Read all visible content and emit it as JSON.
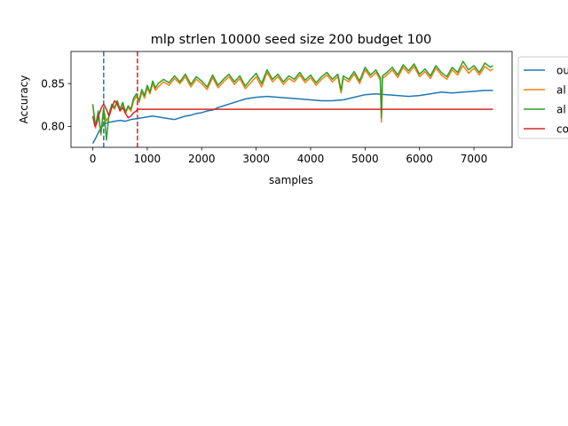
{
  "chart_data": {
    "type": "line",
    "title": "mlp strlen 10000 seed size 200 budget 100",
    "xlabel": "samples",
    "ylabel": "Accuracy",
    "xlim": [
      -400,
      7700
    ],
    "ylim": [
      0.7755,
      0.8875
    ],
    "xticks": [
      0,
      1000,
      2000,
      3000,
      4000,
      5000,
      6000,
      7000
    ],
    "yticks": [
      0.8,
      0.85
    ],
    "ytick_labels": [
      "0.80",
      "0.85"
    ],
    "grid": false,
    "legend_placement": "outside right, clipped",
    "vlines": [
      {
        "x": 200,
        "color": "#1f77b4",
        "style": "dashed"
      },
      {
        "x": 820,
        "color": "#d62728",
        "style": "dashed"
      }
    ],
    "series": [
      {
        "name": "ou",
        "color": "#1f77b4",
        "x": [
          0,
          60,
          120,
          200,
          260,
          320,
          400,
          500,
          600,
          700,
          800,
          900,
          1000,
          1100,
          1200,
          1300,
          1400,
          1500,
          1600,
          1700,
          1800,
          1900,
          2000,
          2100,
          2200,
          2300,
          2400,
          2500,
          2600,
          2700,
          2800,
          2900,
          3000,
          3200,
          3400,
          3600,
          3800,
          4000,
          4200,
          4400,
          4600,
          4800,
          5000,
          5200,
          5400,
          5600,
          5800,
          6000,
          6200,
          6400,
          6600,
          6800,
          7000,
          7200,
          7350
        ],
        "y": [
          0.78,
          0.787,
          0.795,
          0.802,
          0.804,
          0.805,
          0.806,
          0.807,
          0.806,
          0.808,
          0.809,
          0.81,
          0.811,
          0.812,
          0.811,
          0.81,
          0.809,
          0.808,
          0.81,
          0.812,
          0.813,
          0.815,
          0.816,
          0.818,
          0.819,
          0.822,
          0.824,
          0.826,
          0.828,
          0.83,
          0.832,
          0.833,
          0.834,
          0.835,
          0.834,
          0.833,
          0.832,
          0.831,
          0.83,
          0.83,
          0.831,
          0.834,
          0.837,
          0.838,
          0.837,
          0.836,
          0.835,
          0.836,
          0.838,
          0.84,
          0.839,
          0.84,
          0.841,
          0.842,
          0.842
        ]
      },
      {
        "name": "al",
        "color": "#ff7f0e",
        "x": [
          0,
          50,
          100,
          150,
          200,
          250,
          300,
          350,
          400,
          450,
          500,
          550,
          600,
          650,
          700,
          750,
          800,
          850,
          900,
          950,
          1000,
          1050,
          1100,
          1150,
          1200,
          1300,
          1400,
          1500,
          1600,
          1700,
          1800,
          1900,
          2000,
          2100,
          2200,
          2300,
          2400,
          2500,
          2600,
          2700,
          2800,
          2900,
          3000,
          3100,
          3200,
          3300,
          3400,
          3500,
          3600,
          3700,
          3800,
          3900,
          4000,
          4100,
          4200,
          4300,
          4400,
          4500,
          4560,
          4600,
          4700,
          4800,
          4900,
          5000,
          5100,
          5200,
          5280,
          5300,
          5320,
          5400,
          5500,
          5600,
          5700,
          5800,
          5900,
          6000,
          6100,
          6200,
          6300,
          6400,
          6500,
          6600,
          6700,
          6800,
          6900,
          7000,
          7100,
          7200,
          7300,
          7350
        ],
        "y": [
          0.825,
          0.798,
          0.815,
          0.79,
          0.82,
          0.806,
          0.812,
          0.824,
          0.82,
          0.828,
          0.818,
          0.826,
          0.815,
          0.822,
          0.818,
          0.83,
          0.835,
          0.828,
          0.84,
          0.833,
          0.845,
          0.838,
          0.85,
          0.842,
          0.846,
          0.852,
          0.848,
          0.856,
          0.85,
          0.858,
          0.846,
          0.855,
          0.85,
          0.843,
          0.857,
          0.845,
          0.852,
          0.858,
          0.849,
          0.856,
          0.844,
          0.851,
          0.858,
          0.846,
          0.863,
          0.852,
          0.858,
          0.849,
          0.856,
          0.852,
          0.86,
          0.851,
          0.857,
          0.848,
          0.855,
          0.86,
          0.852,
          0.858,
          0.839,
          0.856,
          0.852,
          0.861,
          0.85,
          0.866,
          0.857,
          0.863,
          0.854,
          0.805,
          0.856,
          0.86,
          0.866,
          0.857,
          0.869,
          0.862,
          0.87,
          0.858,
          0.864,
          0.856,
          0.868,
          0.86,
          0.855,
          0.866,
          0.86,
          0.871,
          0.862,
          0.868,
          0.86,
          0.87,
          0.865,
          0.867
        ]
      },
      {
        "name": "al",
        "color": "#2ca02c",
        "x": [
          0,
          50,
          100,
          150,
          200,
          250,
          300,
          350,
          400,
          450,
          500,
          550,
          600,
          650,
          700,
          750,
          800,
          850,
          900,
          950,
          1000,
          1050,
          1100,
          1150,
          1200,
          1300,
          1400,
          1500,
          1600,
          1700,
          1800,
          1900,
          2000,
          2100,
          2200,
          2300,
          2400,
          2500,
          2600,
          2700,
          2800,
          2900,
          3000,
          3100,
          3200,
          3300,
          3400,
          3500,
          3600,
          3700,
          3800,
          3900,
          4000,
          4100,
          4200,
          4300,
          4400,
          4500,
          4560,
          4600,
          4700,
          4800,
          4900,
          5000,
          5100,
          5200,
          5280,
          5300,
          5320,
          5400,
          5500,
          5600,
          5700,
          5800,
          5900,
          6000,
          6100,
          6200,
          6300,
          6400,
          6500,
          6600,
          6700,
          6800,
          6900,
          7000,
          7100,
          7200,
          7300,
          7350
        ],
        "y": [
          0.826,
          0.8,
          0.818,
          0.792,
          0.822,
          0.784,
          0.815,
          0.826,
          0.822,
          0.83,
          0.82,
          0.828,
          0.817,
          0.824,
          0.82,
          0.833,
          0.838,
          0.83,
          0.843,
          0.836,
          0.848,
          0.84,
          0.853,
          0.845,
          0.85,
          0.855,
          0.851,
          0.859,
          0.852,
          0.861,
          0.849,
          0.858,
          0.853,
          0.846,
          0.86,
          0.848,
          0.855,
          0.861,
          0.852,
          0.859,
          0.847,
          0.855,
          0.862,
          0.85,
          0.866,
          0.855,
          0.861,
          0.852,
          0.859,
          0.855,
          0.863,
          0.854,
          0.86,
          0.851,
          0.858,
          0.863,
          0.855,
          0.861,
          0.842,
          0.859,
          0.855,
          0.864,
          0.853,
          0.869,
          0.86,
          0.866,
          0.857,
          0.81,
          0.859,
          0.863,
          0.869,
          0.86,
          0.872,
          0.865,
          0.873,
          0.861,
          0.867,
          0.859,
          0.871,
          0.863,
          0.858,
          0.869,
          0.863,
          0.876,
          0.866,
          0.871,
          0.863,
          0.874,
          0.869,
          0.871
        ]
      },
      {
        "name": "co",
        "color": "#d62728",
        "x": [
          0,
          40,
          80,
          120,
          160,
          200,
          250,
          300,
          350,
          400,
          450,
          500,
          550,
          600,
          650,
          700,
          750,
          800,
          820,
          900,
          1000,
          7350
        ],
        "y": [
          0.812,
          0.8,
          0.805,
          0.815,
          0.822,
          0.826,
          0.82,
          0.812,
          0.822,
          0.83,
          0.826,
          0.818,
          0.822,
          0.815,
          0.81,
          0.812,
          0.816,
          0.818,
          0.82,
          0.82,
          0.82,
          0.82
        ]
      }
    ]
  }
}
